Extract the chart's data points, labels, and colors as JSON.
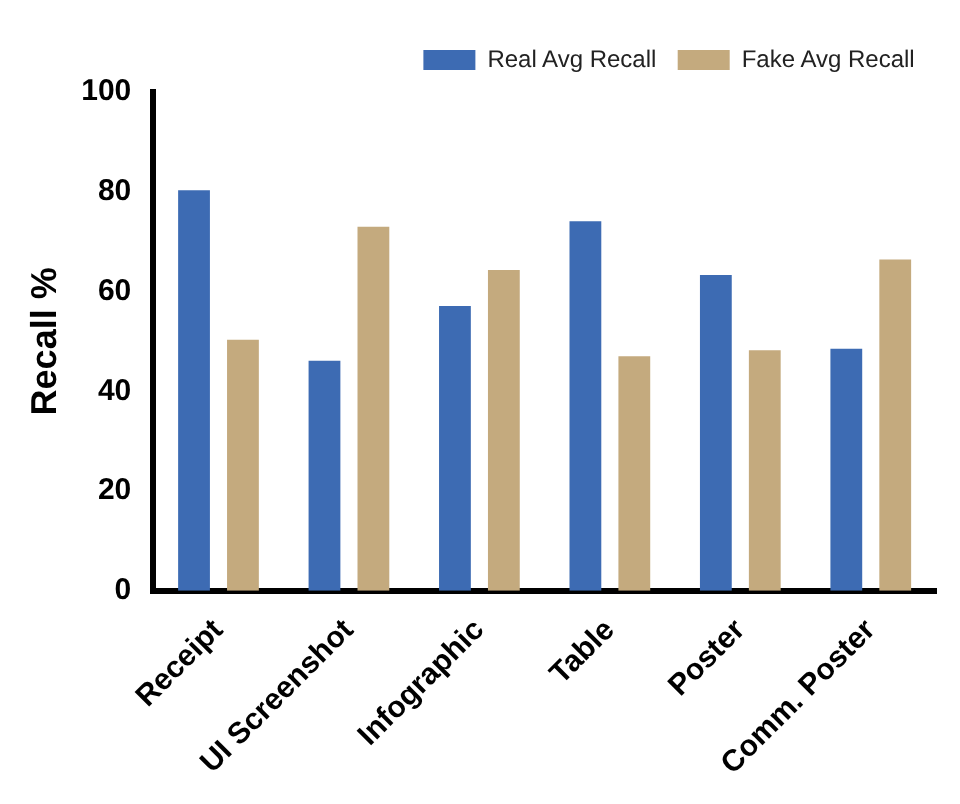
{
  "chart_data": {
    "type": "bar",
    "ylabel": "Recall %",
    "categories": [
      "Receipt",
      "UI Screenshot",
      "Infographic",
      "Table",
      "Poster",
      "Comm. Poster"
    ],
    "series": [
      {
        "name": "Real Avg Recall",
        "color": "#3d6bb3",
        "values": [
          80.3,
          46.1,
          57.1,
          74.1,
          63.3,
          48.5
        ]
      },
      {
        "name": "Fake Avg Recall",
        "color": "#c4aa7e",
        "values": [
          50.3,
          73.0,
          64.3,
          47.0,
          48.2,
          66.4
        ]
      }
    ],
    "ylim": [
      0,
      100
    ],
    "yticks": [
      0,
      20,
      40,
      60,
      80,
      100
    ],
    "grid": false,
    "legend": "top right"
  }
}
